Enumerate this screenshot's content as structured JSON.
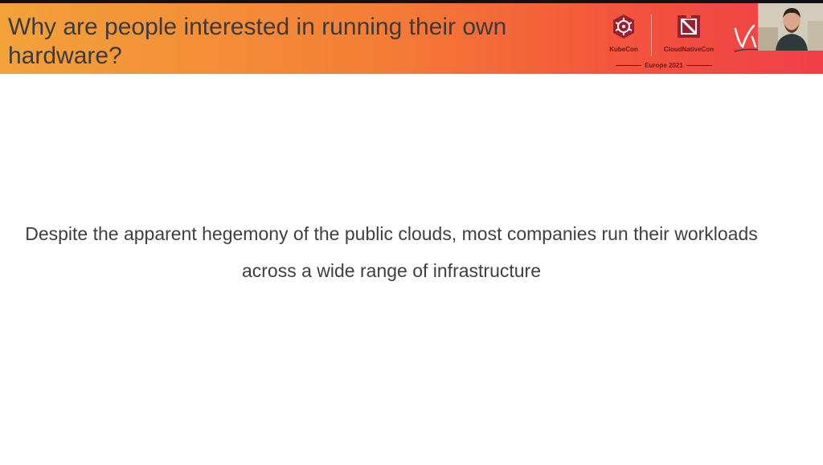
{
  "slide": {
    "title": "Why are people interested in running their own hardware?",
    "body": "Despite the apparent hegemony of the public clouds, most companies run their workloads across a wide range of infrastructure"
  },
  "branding": {
    "kubecon_label": "KubeCon",
    "cncf_label": "CloudNativeCon",
    "event": "Europe 2021"
  },
  "icons": {
    "kubecon": "kubecon-logo-icon",
    "cncf": "cloudnativecon-logo-icon",
    "camera": "speaker-video-thumbnail"
  },
  "colors": {
    "header_start": "#f3a23a",
    "header_end": "#ef3f4a",
    "title_text": "#3b3b3b",
    "body_text": "#3f3f3f"
  }
}
